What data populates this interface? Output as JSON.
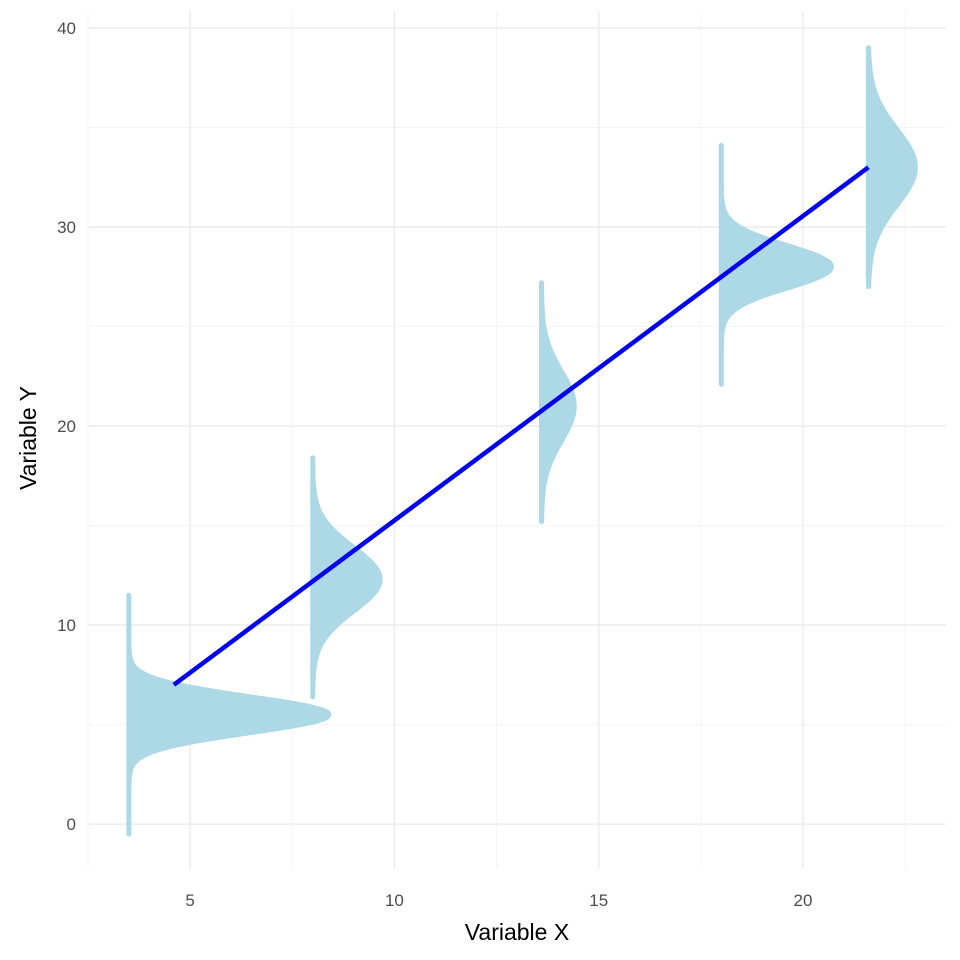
{
  "chart_data": {
    "type": "line",
    "title": "",
    "xlabel": "Variable X",
    "ylabel": "Variable Y",
    "xlim": [
      2.5,
      23.5
    ],
    "ylim": [
      -2.2,
      40.8
    ],
    "x_ticks": [
      5,
      10,
      15,
      20
    ],
    "y_ticks": [
      0,
      10,
      20,
      30,
      40
    ],
    "x_minor_ticks": [
      2.5,
      7.5,
      12.5,
      17.5,
      22.5
    ],
    "y_minor_ticks": [
      5,
      15,
      25,
      35
    ],
    "grid": true,
    "legend": "none",
    "line": {
      "color": "#0000ee",
      "x": [
        4.6,
        21.6
      ],
      "y": [
        7.0,
        33.0
      ]
    },
    "densities": [
      {
        "x": 3.5,
        "mean": 5.5,
        "sd": 0.9,
        "y_min": -0.5,
        "y_max": 11.5,
        "width": 4.9
      },
      {
        "x": 8.0,
        "mean": 12.3,
        "sd": 1.6,
        "y_min": 6.4,
        "y_max": 18.4,
        "width": 1.65
      },
      {
        "x": 13.6,
        "mean": 21.0,
        "sd": 1.75,
        "y_min": 15.2,
        "y_max": 27.2,
        "width": 0.8
      },
      {
        "x": 18.0,
        "mean": 28.0,
        "sd": 1.05,
        "y_min": 22.1,
        "y_max": 34.1,
        "width": 2.7
      },
      {
        "x": 21.6,
        "mean": 33.0,
        "sd": 1.9,
        "y_min": 27.0,
        "y_max": 39.0,
        "width": 1.15
      }
    ],
    "fill_color": "#add8e6"
  }
}
